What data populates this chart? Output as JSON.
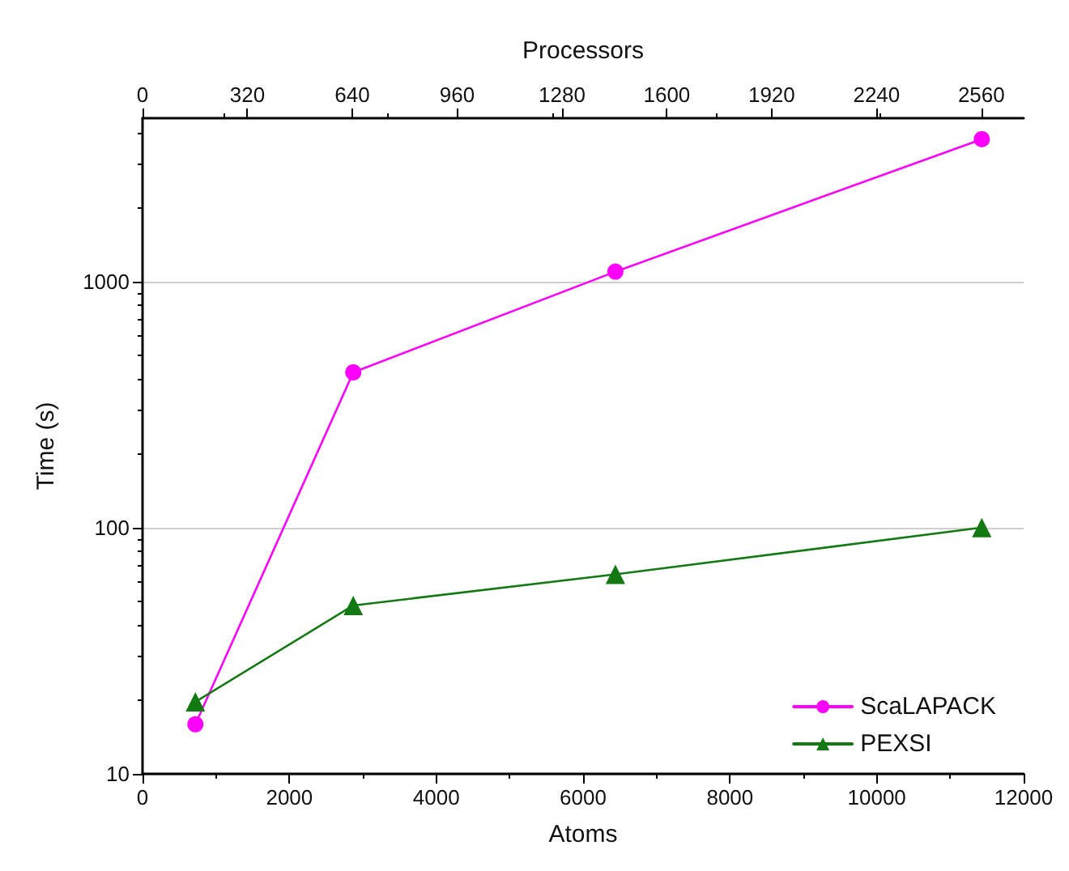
{
  "chart_data": {
    "type": "line",
    "xlabel": "Atoms",
    "ylabel": "Time (s)",
    "x2label": "Processors",
    "x": [
      720,
      2870,
      6440,
      11430
    ],
    "series": [
      {
        "name": "ScaLAPACK",
        "color": "#ff00ff",
        "marker": "circle",
        "values": [
          15.9,
          427,
          1095,
          3780
        ]
      },
      {
        "name": "PEXSI",
        "color": "#137a13",
        "marker": "triangle",
        "values": [
          19.6,
          48.3,
          64.6,
          100
        ]
      }
    ],
    "xlim": [
      0,
      12000
    ],
    "xticks": [
      0,
      2000,
      4000,
      6000,
      8000,
      10000,
      12000
    ],
    "x2lim": [
      0,
      2689
    ],
    "x2ticks": [
      0,
      320,
      640,
      960,
      1280,
      1600,
      1920,
      2240,
      2560
    ],
    "ylim": [
      10,
      4600
    ],
    "yticks": [
      10,
      100,
      1000
    ],
    "log": "y",
    "grid": "y",
    "legend": "bottom right",
    "line_style": "solid"
  }
}
